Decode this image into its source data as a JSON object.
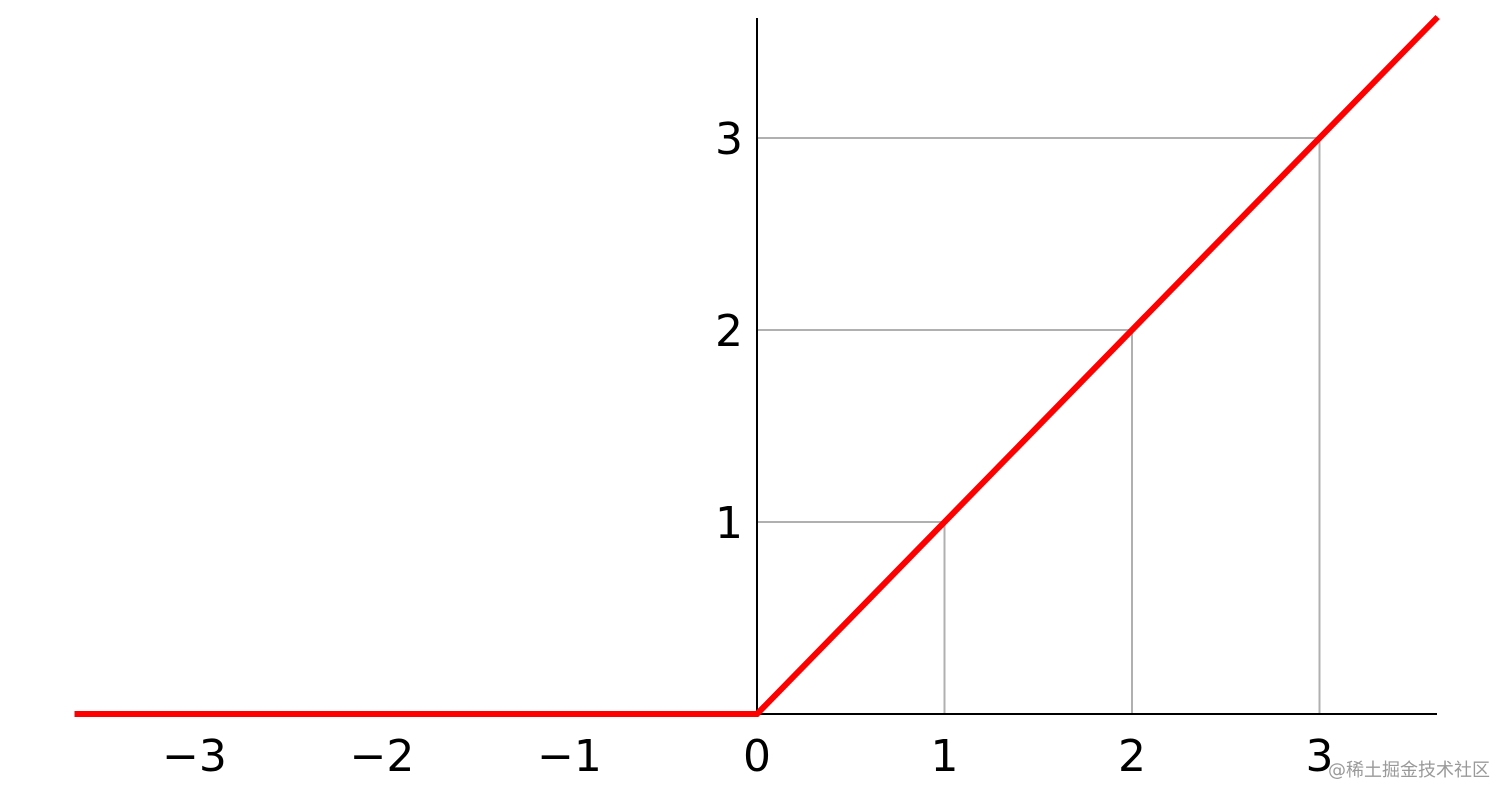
{
  "chart_data": {
    "type": "line",
    "x": [
      -3.64,
      0,
      3.63
    ],
    "series": [
      {
        "values": [
          0,
          0,
          3.63
        ],
        "color": "#ff0000"
      }
    ],
    "xticks": [
      -3,
      -2,
      -1,
      0,
      1,
      2,
      3
    ],
    "xtick_labels": [
      "−3",
      "−2",
      "−1",
      "0",
      "1",
      "2",
      "3"
    ],
    "yticks": [
      1,
      2,
      3
    ],
    "ytick_labels": [
      "1",
      "2",
      "3"
    ],
    "guide_points": [
      [
        1,
        1
      ],
      [
        2,
        2
      ],
      [
        3,
        3
      ]
    ],
    "guide_color": "#b0b0b0",
    "xlim": [
      -3.64,
      3.63
    ],
    "ylim": [
      0,
      3.63
    ],
    "grid": false,
    "title": "",
    "xlabel": "",
    "ylabel": ""
  },
  "watermark": "@稀土掘金技术社区"
}
